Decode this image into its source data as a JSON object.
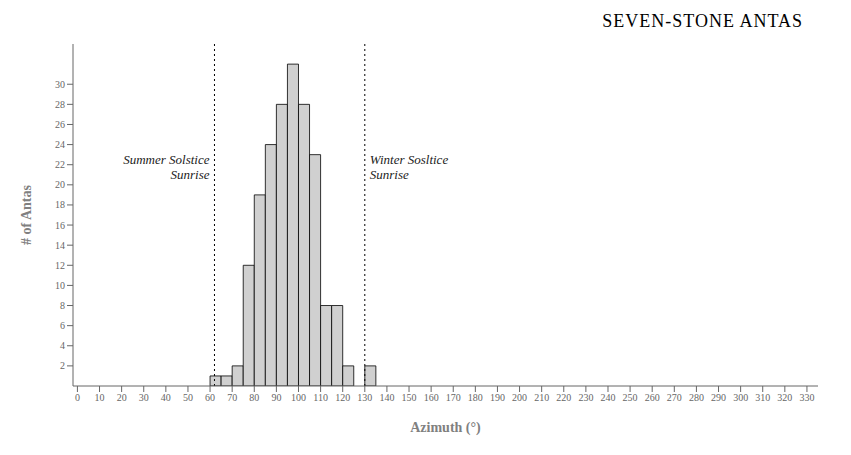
{
  "chart_data": {
    "type": "histogram",
    "title": "SEVEN-STONE ANTAS",
    "x_label": "Azimuth (°)",
    "y_label": "# of Antas",
    "bins": [
      60,
      65,
      70,
      75,
      80,
      85,
      90,
      95,
      100,
      105,
      110,
      115,
      120,
      125,
      130,
      135
    ],
    "counts": [
      1,
      1,
      2,
      12,
      19,
      24,
      28,
      32,
      28,
      23,
      8,
      8,
      2,
      0,
      2
    ],
    "color": "#d0d0d0",
    "xlim": [
      -2,
      335
    ],
    "ylim": [
      0,
      34
    ],
    "xticks": [
      0,
      10,
      20,
      30,
      40,
      50,
      60,
      70,
      80,
      90,
      100,
      110,
      120,
      130,
      140,
      150,
      160,
      170,
      180,
      190,
      200,
      210,
      220,
      230,
      240,
      250,
      260,
      270,
      280,
      290,
      300,
      310,
      320,
      330
    ],
    "yticks": [
      2,
      4,
      6,
      8,
      10,
      12,
      14,
      16,
      18,
      20,
      22,
      24,
      26,
      28,
      30
    ],
    "annotations": [
      {
        "x": 62,
        "text": "Summer Solstice\nSunrise"
      },
      {
        "x": 130,
        "text": "Winter Sosltice\nSunrise"
      }
    ],
    "grid": false
  }
}
